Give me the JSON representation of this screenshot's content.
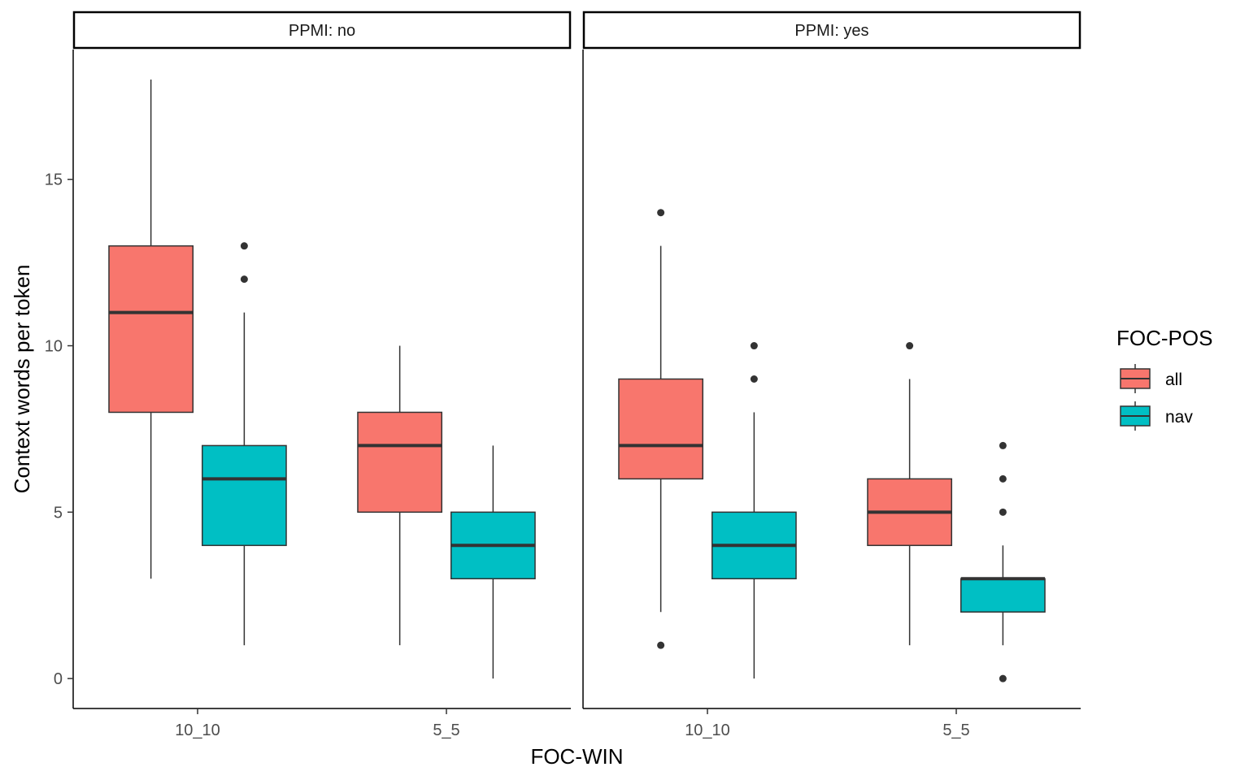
{
  "chart_data": {
    "type": "boxplot",
    "xlabel": "FOC-WIN",
    "ylabel": "Context words per token",
    "ylim": [
      -0.9,
      18.9
    ],
    "yticks": [
      0,
      5,
      10,
      15
    ],
    "categories": [
      "10_10",
      "5_5"
    ],
    "legend": {
      "title": "FOC-POS",
      "position": "right",
      "entries": [
        {
          "name": "all",
          "color": "#F8766D"
        },
        {
          "name": "nav",
          "color": "#00BFC4"
        }
      ]
    },
    "facets": [
      {
        "label": "PPMI: no",
        "boxes": [
          {
            "category": "10_10",
            "group": "all",
            "lower": 3,
            "q1": 8,
            "median": 11,
            "q3": 13,
            "upper": 18,
            "outliers": []
          },
          {
            "category": "10_10",
            "group": "nav",
            "lower": 1,
            "q1": 4,
            "median": 6,
            "q3": 7,
            "upper": 11,
            "outliers": [
              12,
              13
            ]
          },
          {
            "category": "5_5",
            "group": "all",
            "lower": 1,
            "q1": 5,
            "median": 7,
            "q3": 8,
            "upper": 10,
            "outliers": []
          },
          {
            "category": "5_5",
            "group": "nav",
            "lower": 0,
            "q1": 3,
            "median": 4,
            "q3": 5,
            "upper": 7,
            "outliers": []
          }
        ]
      },
      {
        "label": "PPMI: yes",
        "boxes": [
          {
            "category": "10_10",
            "group": "all",
            "lower": 2,
            "q1": 6,
            "median": 7,
            "q3": 9,
            "upper": 13,
            "outliers": [
              1,
              14
            ]
          },
          {
            "category": "10_10",
            "group": "nav",
            "lower": 0,
            "q1": 3,
            "median": 4,
            "q3": 5,
            "upper": 8,
            "outliers": [
              9,
              10
            ]
          },
          {
            "category": "5_5",
            "group": "all",
            "lower": 1,
            "q1": 4,
            "median": 5,
            "q3": 6,
            "upper": 9,
            "outliers": [
              10
            ]
          },
          {
            "category": "5_5",
            "group": "nav",
            "lower": 1,
            "q1": 2,
            "median": 3,
            "q3": 3,
            "upper": 4,
            "outliers": [
              0,
              5,
              6,
              7
            ]
          }
        ]
      }
    ]
  }
}
